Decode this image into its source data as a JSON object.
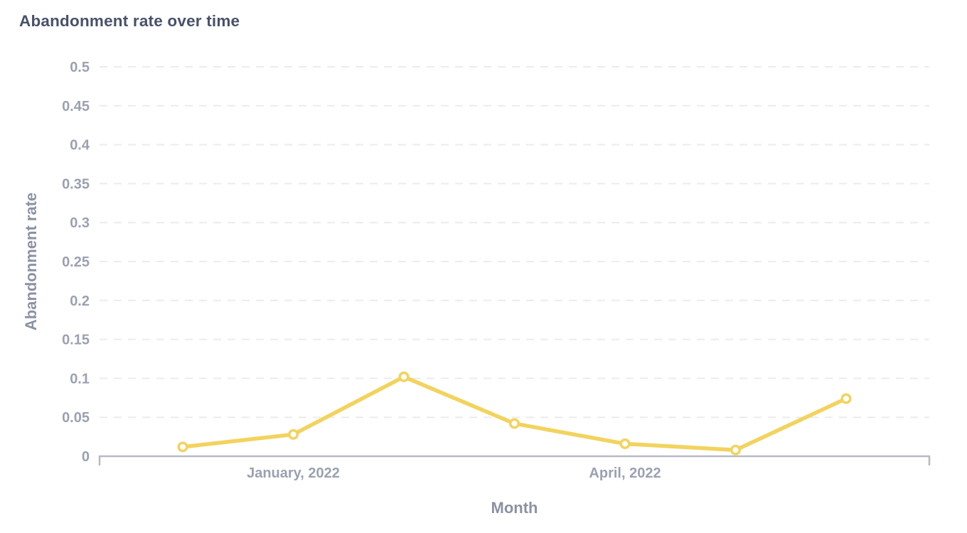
{
  "header": {
    "title": "Abandonment rate over time"
  },
  "colors": {
    "background": "#ffffff",
    "title_text": "#47516b",
    "tick_text": "#9ba1b1",
    "axis_title_text": "#8b92a4",
    "gridline": "#ececec",
    "axis_line": "#b7bac3",
    "series_line": "#f2d35e",
    "marker_fill": "#ffffff"
  },
  "chart_data": {
    "type": "line",
    "title": "Abandonment rate over time",
    "xlabel": "Month",
    "ylabel": "Abandonment rate",
    "ylim": [
      0,
      0.5
    ],
    "yticks": [
      0,
      0.05,
      0.1,
      0.15,
      0.2,
      0.25,
      0.3,
      0.35,
      0.4,
      0.45,
      0.5
    ],
    "grid": "dashed-horizontal",
    "legend": "none",
    "x_point_count": 7,
    "x_tick_labels": [
      {
        "index": 1,
        "label": "January, 2022"
      },
      {
        "index": 4,
        "label": "April, 2022"
      }
    ],
    "series": [
      {
        "name": "Abandonment rate",
        "color": "#f2d35e",
        "marker": "open-circle",
        "values": [
          0.012,
          0.028,
          0.102,
          0.042,
          0.016,
          0.008,
          0.074
        ]
      }
    ]
  }
}
